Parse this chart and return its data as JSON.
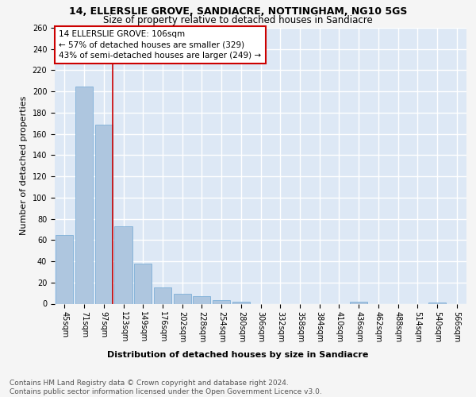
{
  "title": "14, ELLERSLIE GROVE, SANDIACRE, NOTTINGHAM, NG10 5GS",
  "subtitle": "Size of property relative to detached houses in Sandiacre",
  "xlabel": "Distribution of detached houses by size in Sandiacre",
  "ylabel": "Number of detached properties",
  "categories": [
    "45sqm",
    "71sqm",
    "97sqm",
    "123sqm",
    "149sqm",
    "176sqm",
    "202sqm",
    "228sqm",
    "254sqm",
    "280sqm",
    "306sqm",
    "332sqm",
    "358sqm",
    "384sqm",
    "410sqm",
    "436sqm",
    "462sqm",
    "488sqm",
    "514sqm",
    "540sqm",
    "566sqm"
  ],
  "values": [
    65,
    205,
    169,
    73,
    38,
    15,
    9,
    7,
    3,
    2,
    0,
    0,
    0,
    0,
    0,
    2,
    0,
    0,
    0,
    1,
    0
  ],
  "bar_color": "#aec6df",
  "bar_edge_color": "#6fa8d4",
  "reference_line_x": 2,
  "reference_line_color": "#cc0000",
  "annotation_text": "14 ELLERSLIE GROVE: 106sqm\n← 57% of detached houses are smaller (329)\n43% of semi-detached houses are larger (249) →",
  "annotation_box_color": "#cc0000",
  "ylim": [
    0,
    260
  ],
  "yticks": [
    0,
    20,
    40,
    60,
    80,
    100,
    120,
    140,
    160,
    180,
    200,
    220,
    240,
    260
  ],
  "bg_color": "#dde8f5",
  "grid_color": "#ffffff",
  "fig_bg_color": "#f5f5f5",
  "footer": "Contains HM Land Registry data © Crown copyright and database right 2024.\nContains public sector information licensed under the Open Government Licence v3.0.",
  "title_fontsize": 9,
  "subtitle_fontsize": 8.5,
  "xlabel_fontsize": 8,
  "ylabel_fontsize": 8,
  "tick_fontsize": 7,
  "annotation_fontsize": 7.5,
  "footer_fontsize": 6.5
}
